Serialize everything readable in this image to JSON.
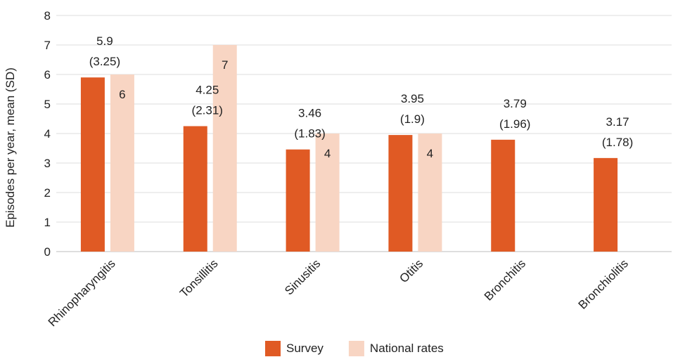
{
  "chart_data": {
    "type": "bar",
    "title": "",
    "xlabel": "",
    "ylabel": "Episodes per year, mean (SD)",
    "ylim": [
      0,
      8
    ],
    "yticks": [
      0,
      1,
      2,
      3,
      4,
      5,
      6,
      7,
      8
    ],
    "grid": true,
    "legend_position": "bottom",
    "categories": [
      "Rhinopharyngitis",
      "Tonsillitis",
      "Sinusitis",
      "Otitis",
      "Bronchitis",
      "Bronchiolitis"
    ],
    "series": [
      {
        "name": "Survey",
        "color": "#e05a24",
        "values": [
          5.9,
          4.25,
          3.46,
          3.95,
          3.79,
          3.17
        ],
        "labels": [
          [
            "5.9",
            "(3.25)"
          ],
          [
            "4.25",
            "(2.31)"
          ],
          [
            "3.46",
            "(1.83)"
          ],
          [
            "3.95",
            "(1.9)"
          ],
          [
            "3.79",
            "(1.96)"
          ],
          [
            "3.17",
            "(1.78)"
          ]
        ]
      },
      {
        "name": "National rates",
        "color": "#f8d5c3",
        "values": [
          6,
          7,
          4,
          4,
          null,
          null
        ],
        "labels": [
          "6",
          "7",
          "4",
          "4",
          null,
          null
        ]
      }
    ]
  }
}
